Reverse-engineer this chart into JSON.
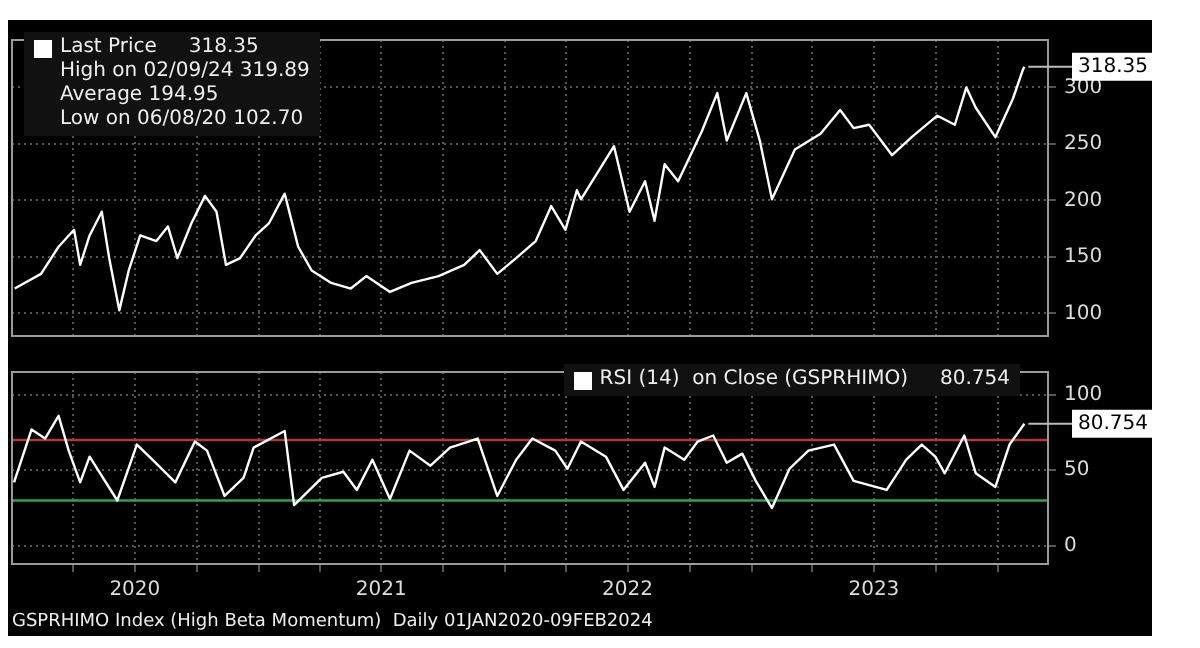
{
  "chart_data": [
    {
      "type": "line",
      "legend": "top left",
      "grid": true,
      "tick_labels": "y",
      "xlim": [
        "2020-01-01",
        "2024-03-15"
      ],
      "xticks": [
        {
          "value": "2020-04-01",
          "label": null
        },
        {
          "value": "2020-07-01",
          "label": null
        },
        {
          "value": "2020-10-01",
          "label": null
        },
        {
          "value": "2021-01-01",
          "label": null
        },
        {
          "value": "2021-04-01",
          "label": null
        },
        {
          "value": "2021-07-01",
          "label": null
        },
        {
          "value": "2021-10-01",
          "label": null
        },
        {
          "value": "2022-01-01",
          "label": null
        },
        {
          "value": "2022-04-01",
          "label": null
        },
        {
          "value": "2022-07-01",
          "label": null
        },
        {
          "value": "2022-10-01",
          "label": null
        },
        {
          "value": "2023-01-01",
          "label": null
        },
        {
          "value": "2023-04-01",
          "label": null
        },
        {
          "value": "2023-07-01",
          "label": null
        },
        {
          "value": "2023-10-01",
          "label": null
        },
        {
          "value": "2024-01-01",
          "label": null
        }
      ],
      "ylim": [
        80,
        342
      ],
      "yticks": [
        100,
        150,
        200,
        250,
        300
      ],
      "annotations": [
        {
          "text": "318.35",
          "x": "2024-02-09",
          "y": 318.35
        },
        "High on 02/09/24 319.89",
        "Average 194.95",
        "Low on 06/08/20 102.70"
      ],
      "series": [
        {
          "name": "Last Price",
          "color": "#ffffff",
          "x": [
            "2020-01-05",
            "2020-02-13",
            "2020-03-10",
            "2020-04-02",
            "2020-04-11",
            "2020-04-25",
            "2020-05-13",
            "2020-05-24",
            "2020-06-08",
            "2020-06-22",
            "2020-07-09",
            "2020-08-02",
            "2020-08-19",
            "2020-09-02",
            "2020-09-23",
            "2020-10-13",
            "2020-10-30",
            "2020-11-13",
            "2020-12-04",
            "2020-12-27",
            "2021-01-16",
            "2021-02-08",
            "2021-02-28",
            "2021-03-20",
            "2021-04-18",
            "2021-05-17",
            "2021-06-09",
            "2021-07-14",
            "2021-08-15",
            "2021-09-24",
            "2021-11-01",
            "2021-11-24",
            "2021-12-20",
            "2022-01-17",
            "2022-02-15",
            "2022-03-10",
            "2022-03-31",
            "2022-04-17",
            "2022-04-23",
            "2022-06-11",
            "2022-07-04",
            "2022-07-27",
            "2022-08-10",
            "2022-08-25",
            "2022-09-14",
            "2022-10-19",
            "2022-11-11",
            "2022-11-25",
            "2022-12-24",
            "2023-01-13",
            "2023-01-31",
            "2023-03-06",
            "2023-04-13",
            "2023-05-12",
            "2023-06-01",
            "2023-06-24",
            "2023-07-28",
            "2023-08-26",
            "2023-10-03",
            "2023-10-29",
            "2023-11-15",
            "2023-11-29",
            "2023-12-28",
            "2024-01-23",
            "2024-02-07",
            "2024-02-09"
          ],
          "values": [
            122,
            135,
            159,
            174,
            143,
            169,
            190,
            149,
            102.7,
            138,
            169,
            164,
            177,
            149,
            180,
            204,
            190,
            143,
            149,
            169,
            180,
            206,
            159,
            138,
            127,
            122,
            133,
            119,
            127,
            133,
            143,
            156,
            135,
            149,
            164,
            195,
            174,
            209,
            201,
            248,
            190,
            217,
            182,
            232,
            217,
            261,
            295,
            253,
            295,
            253,
            201,
            245,
            259,
            280,
            264,
            267,
            240,
            256,
            275,
            267,
            300,
            282,
            256,
            290,
            316,
            318.35
          ]
        }
      ]
    },
    {
      "type": "line",
      "legend": "top right",
      "grid": true,
      "xlim": [
        "2020-01-01",
        "2024-03-15"
      ],
      "xticks": [
        {
          "value": "2020-04-01",
          "label": null
        },
        {
          "value": "2020-07-01",
          "label": "2020"
        },
        {
          "value": "2020-10-01",
          "label": null
        },
        {
          "value": "2021-01-01",
          "label": null
        },
        {
          "value": "2021-04-01",
          "label": null
        },
        {
          "value": "2021-07-01",
          "label": "2021"
        },
        {
          "value": "2021-10-01",
          "label": null
        },
        {
          "value": "2022-01-01",
          "label": null
        },
        {
          "value": "2022-04-01",
          "label": null
        },
        {
          "value": "2022-07-01",
          "label": "2022"
        },
        {
          "value": "2022-10-01",
          "label": null
        },
        {
          "value": "2023-01-01",
          "label": null
        },
        {
          "value": "2023-04-01",
          "label": null
        },
        {
          "value": "2023-07-01",
          "label": "2023"
        },
        {
          "value": "2023-10-01",
          "label": null
        },
        {
          "value": "2024-01-01",
          "label": null
        }
      ],
      "ylim": [
        -12,
        115
      ],
      "yticks": [
        0,
        50,
        100
      ],
      "ref_lines": [
        {
          "axis": "y",
          "value": 70,
          "color": "#b03a3a"
        },
        {
          "axis": "y",
          "value": 30,
          "color": "#3a9a5a"
        }
      ],
      "annotations": [
        {
          "text": "80.754",
          "x": "2024-02-09",
          "y": 80.754
        },
        "GSPRHIMO Index (High Beta Momentum)  Daily 01JAN2020-09FEB2024"
      ],
      "series": [
        {
          "name": "RSI (14)  on Close (GSPRHIMO)",
          "color": "#ffffff",
          "x": [
            "2020-01-04",
            "2020-01-30",
            "2020-02-19",
            "2020-03-10",
            "2020-03-25",
            "2020-04-11",
            "2020-04-25",
            "2020-06-05",
            "2020-07-04",
            "2020-07-27",
            "2020-08-30",
            "2020-09-28",
            "2020-10-16",
            "2020-11-11",
            "2020-12-09",
            "2020-12-24",
            "2021-02-08",
            "2021-02-22",
            "2021-04-04",
            "2021-05-06",
            "2021-05-26",
            "2021-06-18",
            "2021-07-14",
            "2021-08-12",
            "2021-09-12",
            "2021-10-11",
            "2021-11-21",
            "2021-12-20",
            "2022-01-17",
            "2022-02-10",
            "2022-03-16",
            "2022-04-03",
            "2022-04-23",
            "2022-05-30",
            "2022-06-25",
            "2022-07-27",
            "2022-08-10",
            "2022-08-25",
            "2022-09-23",
            "2022-10-13",
            "2022-11-05",
            "2022-11-25",
            "2022-12-18",
            "2023-01-07",
            "2023-01-31",
            "2023-02-26",
            "2023-03-26",
            "2023-05-03",
            "2023-06-01",
            "2023-07-20",
            "2023-08-18",
            "2023-09-10",
            "2023-09-30",
            "2023-10-14",
            "2023-11-12",
            "2023-11-29",
            "2023-12-28",
            "2024-01-18",
            "2024-02-09"
          ],
          "values": [
            42,
            77,
            71,
            86,
            63,
            42,
            59,
            30,
            67,
            57,
            42,
            69,
            63,
            33,
            45,
            65,
            76,
            27,
            45,
            49,
            37,
            57,
            31,
            63,
            53,
            65,
            71,
            33,
            57,
            71,
            63,
            51,
            69,
            59,
            37,
            55,
            39,
            65,
            57,
            69,
            73,
            55,
            61,
            43,
            25,
            51,
            63,
            67,
            43,
            37,
            57,
            67,
            59,
            48,
            73,
            48,
            39,
            67,
            80.754
          ]
        }
      ]
    }
  ]
}
